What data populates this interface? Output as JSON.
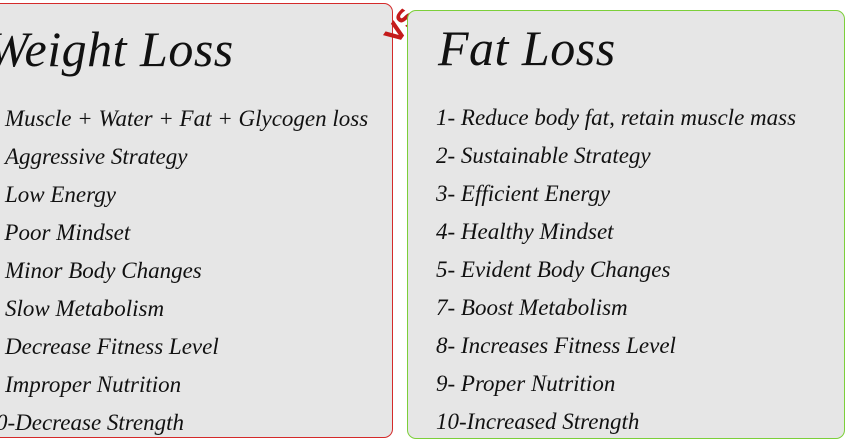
{
  "left": {
    "title": "Weight Loss",
    "items": [
      "Muscle + Water + Fat + Glycogen loss",
      "Aggressive Strategy",
      "Low Energy",
      "- Poor Mindset",
      "Minor Body Changes",
      "Slow Metabolism",
      "Decrease Fitness Level",
      "Improper Nutrition",
      "0-Decrease Strength"
    ]
  },
  "vs": "VS",
  "right": {
    "title": "Fat Loss",
    "items": [
      "1- Reduce body fat, retain muscle mass",
      "2- Sustainable Strategy",
      "3- Efficient Energy",
      "4- Healthy Mindset",
      "5- Evident Body Changes",
      "7- Boost Metabolism",
      "8- Increases Fitness Level",
      "9- Proper Nutrition",
      "10-Increased Strength"
    ]
  },
  "colors": {
    "left_border": "#d42a2a",
    "right_border": "#7ccf3a",
    "vs": "#c41b1b",
    "panel_bg": "#e6e6e6"
  }
}
